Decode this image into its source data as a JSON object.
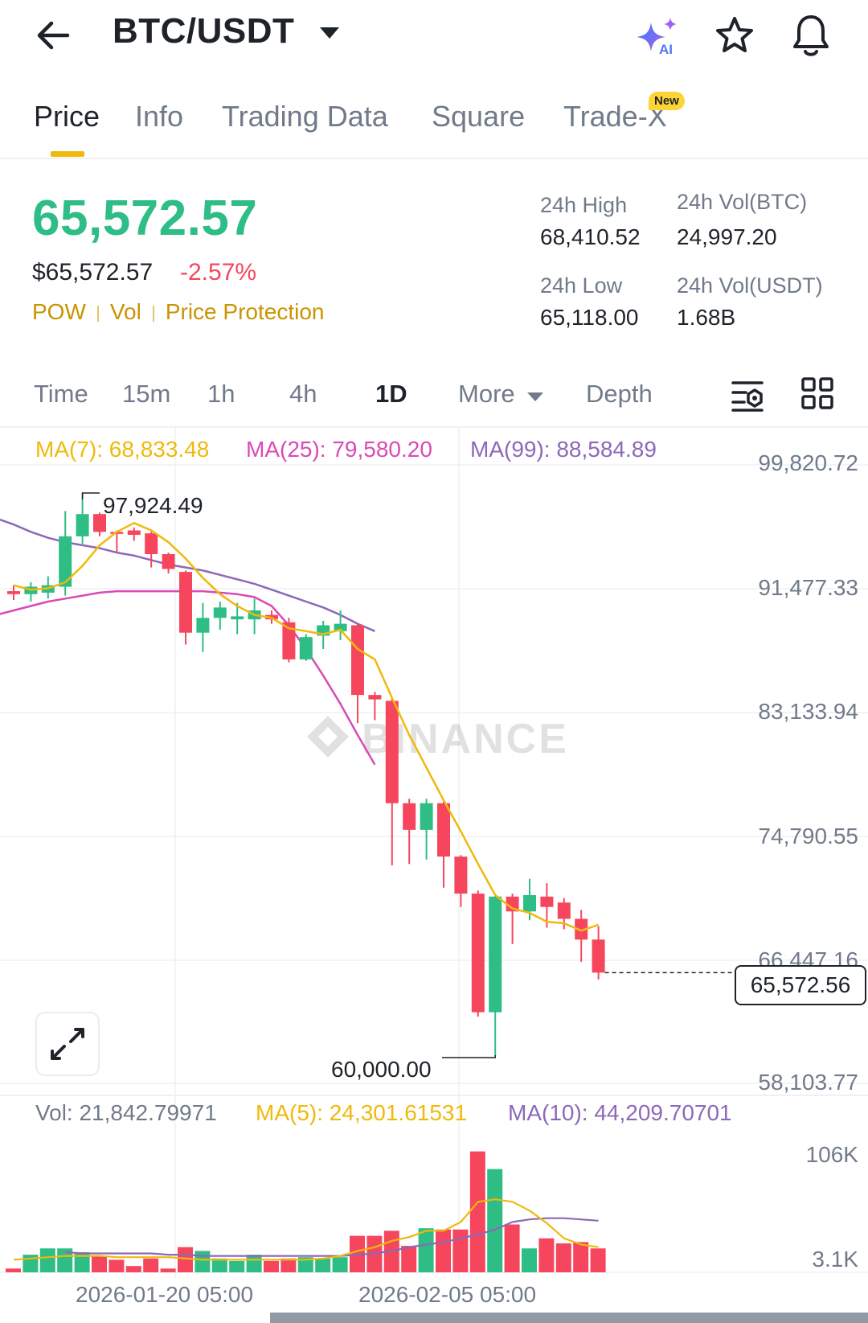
{
  "header": {
    "pair": "BTC/USDT",
    "icons": [
      "back-arrow-icon",
      "ai-sparkle-icon",
      "star-icon",
      "bell-icon"
    ],
    "ai_label": "AI"
  },
  "tabs": [
    {
      "label": "Price",
      "active": true
    },
    {
      "label": "Info"
    },
    {
      "label": "Trading Data"
    },
    {
      "label": "Square"
    },
    {
      "label": "Trade-X"
    }
  ],
  "new_badge": "New",
  "price": {
    "last": "65,572.57",
    "usd": "$65,572.57",
    "change_pct": "-2.57%",
    "tags": [
      "POW",
      "Vol",
      "Price Protection"
    ]
  },
  "stats": {
    "high_label": "24h High",
    "high": "68,410.52",
    "vol_btc_label": "24h Vol(BTC)",
    "vol_btc": "24,997.20",
    "low_label": "24h Low",
    "low": "65,118.00",
    "vol_usdt_label": "24h Vol(USDT)",
    "vol_usdt": "1.68B"
  },
  "intervals": [
    {
      "label": "Time"
    },
    {
      "label": "15m"
    },
    {
      "label": "1h"
    },
    {
      "label": "4h"
    },
    {
      "label": "1D",
      "active": true
    },
    {
      "label": "More"
    },
    {
      "label": "Depth"
    }
  ],
  "ma_legend": {
    "ma7": "MA(7): 68,833.48",
    "ma25": "MA(25): 79,580.20",
    "ma99": "MA(99): 88,584.89"
  },
  "colors": {
    "up": "#2ebd85",
    "down": "#f6465d",
    "ma7": "#f0b90b",
    "ma25": "#d94ab6",
    "ma99": "#8d68b8",
    "accent": "#f0b90b"
  },
  "price_axis": [
    "99,820.72",
    "91,477.33",
    "83,133.94",
    "74,790.55",
    "66,447.16",
    "58,103.77"
  ],
  "current_price_tag": "65,572.56",
  "high_marker": "97,924.49",
  "low_marker": "60,000.00",
  "volume": {
    "vol": "Vol: 21,842.79971",
    "ma5": "MA(5): 24,301.61531",
    "ma10": "MA(10): 44,209.70701",
    "axis_top": "106K",
    "axis_bottom": "3.1K"
  },
  "dates": [
    "2026-01-20 05:00",
    "2026-02-05 05:00"
  ],
  "watermark": "BINANCE",
  "chart_data": {
    "type": "candlestick",
    "interval": "1D",
    "y_range": [
      58103.77,
      99820.72
    ],
    "candles": [
      {
        "o": 91300,
        "h": 91700,
        "l": 90700,
        "c": 91100
      },
      {
        "o": 91100,
        "h": 91900,
        "l": 90600,
        "c": 91600
      },
      {
        "o": 91200,
        "h": 92300,
        "l": 90800,
        "c": 91700
      },
      {
        "o": 91600,
        "h": 96700,
        "l": 91000,
        "c": 95000
      },
      {
        "o": 95000,
        "h": 97924.49,
        "l": 94500,
        "c": 96500
      },
      {
        "o": 96500,
        "h": 96600,
        "l": 95000,
        "c": 95300
      },
      {
        "o": 95300,
        "h": 95400,
        "l": 93900,
        "c": 95200
      },
      {
        "o": 95400,
        "h": 95600,
        "l": 94700,
        "c": 95100
      },
      {
        "o": 95200,
        "h": 95300,
        "l": 92900,
        "c": 93800
      },
      {
        "o": 93800,
        "h": 93900,
        "l": 92500,
        "c": 92800
      },
      {
        "o": 92600,
        "h": 92700,
        "l": 87700,
        "c": 88500
      },
      {
        "o": 88500,
        "h": 90500,
        "l": 87200,
        "c": 89500
      },
      {
        "o": 89500,
        "h": 90600,
        "l": 88700,
        "c": 90200
      },
      {
        "o": 89400,
        "h": 90500,
        "l": 88400,
        "c": 89600
      },
      {
        "o": 89400,
        "h": 90800,
        "l": 88400,
        "c": 90000
      },
      {
        "o": 89700,
        "h": 90000,
        "l": 89100,
        "c": 89400
      },
      {
        "o": 89200,
        "h": 89500,
        "l": 86500,
        "c": 86700
      },
      {
        "o": 86700,
        "h": 88400,
        "l": 86600,
        "c": 88200
      },
      {
        "o": 88300,
        "h": 89300,
        "l": 87400,
        "c": 89000
      },
      {
        "o": 88600,
        "h": 90000,
        "l": 88000,
        "c": 89100
      },
      {
        "o": 89000,
        "h": 89100,
        "l": 82400,
        "c": 84300
      },
      {
        "o": 84300,
        "h": 84500,
        "l": 82600,
        "c": 84000
      },
      {
        "o": 83900,
        "h": 84100,
        "l": 72800,
        "c": 77000
      },
      {
        "o": 77000,
        "h": 77300,
        "l": 72900,
        "c": 75200
      },
      {
        "o": 75200,
        "h": 77300,
        "l": 73200,
        "c": 77000
      },
      {
        "o": 77000,
        "h": 77100,
        "l": 71300,
        "c": 73400
      },
      {
        "o": 73400,
        "h": 73500,
        "l": 70000,
        "c": 70900
      },
      {
        "o": 70900,
        "h": 71100,
        "l": 62600,
        "c": 62900
      },
      {
        "o": 62900,
        "h": 70800,
        "l": 60000,
        "c": 70700
      },
      {
        "o": 70700,
        "h": 70900,
        "l": 67500,
        "c": 69700
      },
      {
        "o": 69700,
        "h": 71900,
        "l": 69100,
        "c": 70800
      },
      {
        "o": 70700,
        "h": 71600,
        "l": 68600,
        "c": 70000
      },
      {
        "o": 70300,
        "h": 70600,
        "l": 68500,
        "c": 69200
      },
      {
        "o": 69200,
        "h": 69800,
        "l": 66300,
        "c": 67800
      },
      {
        "o": 67800,
        "h": 68700,
        "l": 65118,
        "c": 65572.56
      }
    ],
    "ma7": [
      91700,
      91400,
      91500,
      91900,
      93000,
      94400,
      95300,
      95900,
      95400,
      94600,
      93500,
      92200,
      91100,
      90300,
      89700,
      89500,
      88800,
      88600,
      88400,
      88700,
      87400,
      86700,
      84100,
      81600,
      79400,
      77200,
      75100,
      72900,
      70800,
      69900,
      69600,
      69000,
      68900,
      68400,
      68800
    ],
    "ma25": [
      89400,
      89700,
      90000,
      90300,
      90600,
      90800,
      91000,
      91200,
      91300,
      91300,
      91300,
      91300,
      91300,
      91300,
      91200,
      91100,
      90900,
      90300,
      89000,
      87400,
      85600,
      83700,
      81600,
      79600
    ],
    "ma99": [
      96700,
      96200,
      95800,
      95300,
      94900,
      94600,
      94400,
      94200,
      93900,
      93700,
      93400,
      93100,
      92900,
      92700,
      92400,
      92100,
      91800,
      91400,
      91000,
      90600,
      90200,
      89700,
      89100,
      88600
    ],
    "volumes": [
      3,
      14,
      19,
      19,
      16,
      13,
      10,
      5,
      11,
      3,
      20,
      17,
      11,
      9,
      14,
      9,
      11,
      12,
      11,
      12,
      29,
      29,
      33,
      21,
      35,
      34,
      34,
      96,
      82,
      38,
      19,
      27,
      23,
      24,
      19
    ],
    "vol_ma5": [
      10,
      11,
      12,
      13,
      13,
      13,
      12,
      12,
      12,
      12,
      11,
      10,
      10,
      10,
      10,
      10,
      10,
      10,
      11,
      13,
      17,
      20,
      25,
      28,
      33,
      33,
      40,
      56,
      58,
      56,
      49,
      39,
      27,
      22,
      20
    ],
    "vol_ma10": [
      16,
      15,
      15,
      15,
      15,
      15,
      14,
      14,
      13,
      13,
      13,
      13,
      13,
      13,
      13,
      13,
      13,
      14,
      15,
      17,
      20,
      22,
      24,
      27,
      30,
      34,
      40,
      42,
      43,
      43,
      42,
      41
    ],
    "vol_range": [
      3.1,
      106
    ]
  }
}
